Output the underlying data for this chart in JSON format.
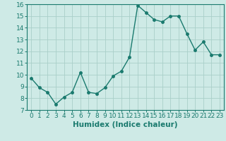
{
  "x": [
    0,
    1,
    2,
    3,
    4,
    5,
    6,
    7,
    8,
    9,
    10,
    11,
    12,
    13,
    14,
    15,
    16,
    17,
    18,
    19,
    20,
    21,
    22,
    23
  ],
  "y": [
    9.7,
    8.9,
    8.5,
    7.5,
    8.1,
    8.5,
    10.2,
    8.5,
    8.4,
    8.9,
    9.9,
    10.3,
    11.5,
    15.9,
    15.3,
    14.7,
    14.5,
    15.0,
    15.0,
    13.5,
    12.1,
    12.8,
    11.7,
    11.7
  ],
  "line_color": "#1a7a6e",
  "marker": "o",
  "markersize": 2.5,
  "linewidth": 1.0,
  "bg_color": "#ceeae6",
  "grid_color": "#aacfc9",
  "xlabel": "Humidex (Indice chaleur)",
  "xlim": [
    -0.5,
    23.5
  ],
  "ylim": [
    7,
    16
  ],
  "yticks": [
    7,
    8,
    9,
    10,
    11,
    12,
    13,
    14,
    15,
    16
  ],
  "xticks": [
    0,
    1,
    2,
    3,
    4,
    5,
    6,
    7,
    8,
    9,
    10,
    11,
    12,
    13,
    14,
    15,
    16,
    17,
    18,
    19,
    20,
    21,
    22,
    23
  ],
  "tick_fontsize": 6.5,
  "xlabel_fontsize": 7.5
}
